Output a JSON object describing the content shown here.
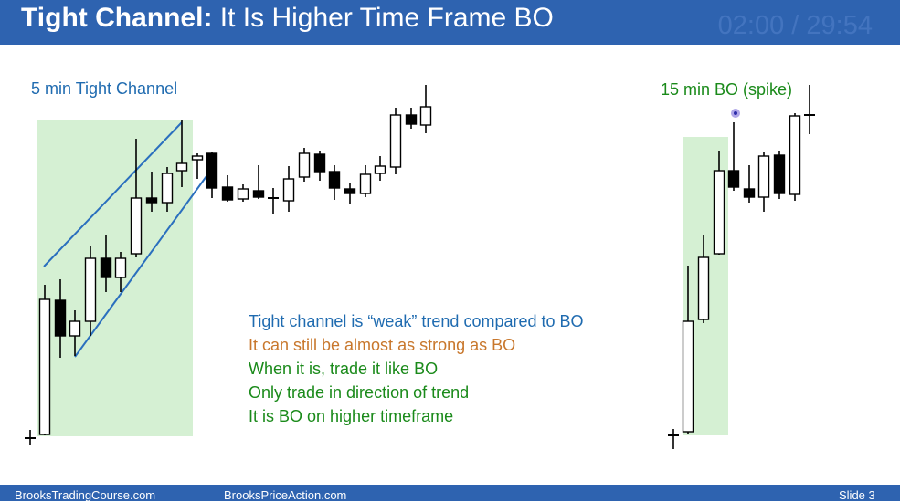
{
  "title": {
    "bold": "Tight Channel:",
    "rest": " It Is Higher Time Frame BO"
  },
  "timer": "02:00 / 29:54",
  "left_chart": {
    "label": "5 min Tight Channel"
  },
  "right_chart": {
    "label": "15 min BO (spike)"
  },
  "bullets": [
    {
      "text": "Tight channel is “weak” trend compared to BO",
      "color": "#1f6bb0"
    },
    {
      "text": "It can still be almost as strong as BO",
      "color": "#c8772c"
    },
    {
      "text": "When it is, trade it like BO",
      "color": "#1a8a1a"
    },
    {
      "text": "Only trade in direction of trend",
      "color": "#1a8a1a"
    },
    {
      "text": "It is BO on higher timeframe",
      "color": "#1a8a1a"
    }
  ],
  "footer": {
    "left": "BrooksTradingCourse.com",
    "center": "BrooksPriceAction.com",
    "slide": "Slide 3"
  },
  "colors": {
    "title_bar": "#2e63b0",
    "highlight": "#d5f0d3",
    "channel_line": "#2a6fbe",
    "label_blue": "#1f6bb0",
    "label_green": "#1a8a1a"
  }
}
